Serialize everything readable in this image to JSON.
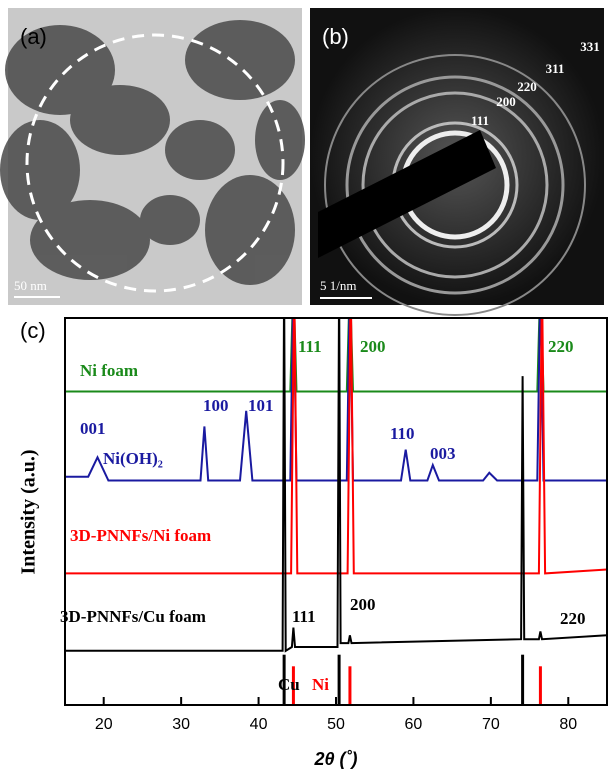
{
  "panels": {
    "a": {
      "label": "(a)",
      "scale_bar": "50 nm"
    },
    "b": {
      "label": "(b)",
      "scale_bar": "5 1/nm",
      "ring_labels": [
        "111",
        "200",
        "220",
        "311",
        "331"
      ]
    }
  },
  "chart_data": {
    "type": "line",
    "panel_label": "(c)",
    "x_label": "2θ (˚)",
    "y_label": "Intensity (a.u.)",
    "xlim": [
      15,
      85
    ],
    "ylim": [
      0,
      100
    ],
    "xticks": [
      20,
      30,
      40,
      50,
      60,
      70,
      80
    ],
    "series": [
      {
        "name": "Ni foam",
        "color": "#1a8a1a",
        "x": [
          15,
          44.1,
          44.5,
          44.9,
          51.4,
          51.8,
          52.2,
          76.0,
          76.4,
          76.8,
          85
        ],
        "values": [
          81,
          81,
          110,
          81,
          81,
          110,
          81,
          81,
          110,
          81,
          81
        ]
      },
      {
        "name": "Ni(OH)₂",
        "color": "#1a1aa0",
        "x": [
          15,
          18.0,
          19.2,
          20.6,
          32.5,
          33.0,
          33.5,
          37.6,
          38.4,
          39.2,
          44.1,
          44.5,
          44.9,
          51.4,
          51.8,
          52.2,
          58.4,
          59.0,
          59.6,
          61.8,
          62.5,
          63.3,
          69.0,
          69.8,
          70.8,
          76.0,
          76.4,
          76.8,
          85
        ],
        "values": [
          59,
          59,
          64,
          58,
          58,
          72,
          58,
          58,
          76,
          58,
          58,
          110,
          58,
          58,
          110,
          58,
          58,
          66,
          58,
          58,
          62,
          58,
          58,
          60,
          58,
          58,
          110,
          58,
          58
        ]
      },
      {
        "name": "3D-PNNFs/Ni foam",
        "color": "#ff0000",
        "x": [
          15,
          44.2,
          44.6,
          45.0,
          51.5,
          51.9,
          52.3,
          76.2,
          76.6,
          77.0,
          85
        ],
        "values": [
          34,
          34,
          110,
          34,
          34,
          110,
          34,
          34,
          110,
          34,
          35
        ]
      },
      {
        "name": "3D-PNNFs/Cu foam",
        "color": "#000000",
        "x": [
          15,
          43.1,
          43.3,
          43.5,
          44.3,
          44.5,
          44.7,
          50.2,
          50.4,
          50.6,
          51.6,
          51.8,
          52.0,
          73.9,
          74.1,
          74.3,
          76.2,
          76.4,
          76.6,
          85
        ],
        "values": [
          14,
          14,
          110,
          14,
          15,
          20,
          15,
          15,
          110,
          16,
          16,
          18,
          16,
          17,
          85,
          17,
          17,
          19,
          17,
          18
        ]
      }
    ],
    "references": [
      {
        "name": "Cu",
        "color": "#000000",
        "x": [
          43.3,
          50.4,
          74.1
        ],
        "values": [
          13,
          13,
          13
        ]
      },
      {
        "name": "Ni",
        "color": "#ff0000",
        "x": [
          44.5,
          51.8,
          76.4
        ],
        "values": [
          10,
          10,
          10
        ]
      }
    ],
    "annotations": [
      {
        "text": "111",
        "color": "#1a8a1a"
      },
      {
        "text": "200",
        "color": "#1a8a1a"
      },
      {
        "text": "220",
        "color": "#1a8a1a"
      },
      {
        "text": "001",
        "color": "#1a1aa0"
      },
      {
        "text": "100",
        "color": "#1a1aa0"
      },
      {
        "text": "101",
        "color": "#1a1aa0"
      },
      {
        "text": "110",
        "color": "#1a1aa0"
      },
      {
        "text": "003",
        "color": "#1a1aa0"
      },
      {
        "text": "111",
        "color": "#000000"
      },
      {
        "text": "200",
        "color": "#000000"
      },
      {
        "text": "220",
        "color": "#000000"
      }
    ]
  }
}
